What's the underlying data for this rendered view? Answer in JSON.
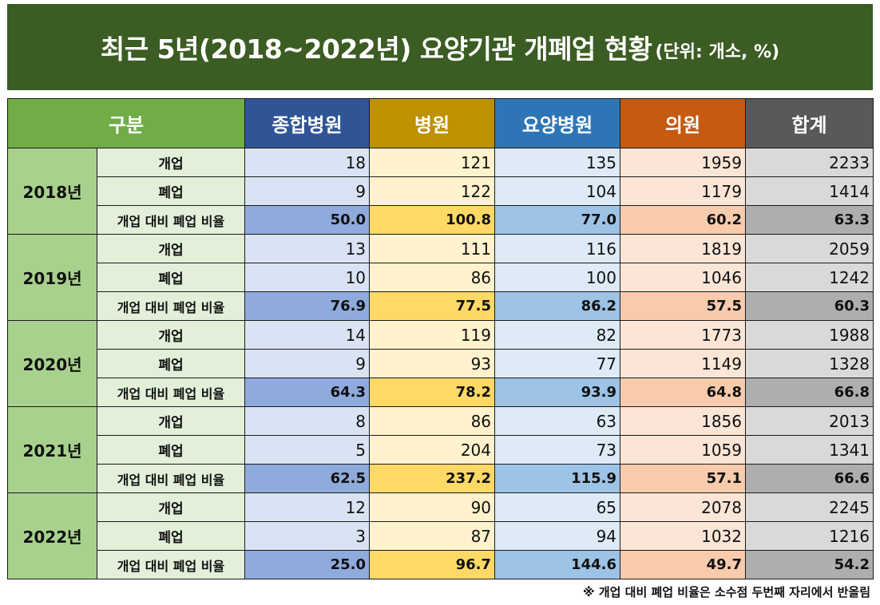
{
  "title": {
    "main": "최근 5년(2018~2022년) 요양기관 개폐업 현황",
    "unit": "(단위: 개소, %)"
  },
  "columns": {
    "category": "구분",
    "items": [
      "종합병원",
      "병원",
      "요양병원",
      "의원",
      "합계"
    ]
  },
  "row_labels": {
    "open": "개업",
    "close": "폐업",
    "ratio": "개업 대비 폐업 비율"
  },
  "years": [
    {
      "year": "2018년",
      "open": [
        "18",
        "121",
        "135",
        "1959",
        "2233"
      ],
      "close": [
        "9",
        "122",
        "104",
        "1179",
        "1414"
      ],
      "ratio": [
        "50.0",
        "100.8",
        "77.0",
        "60.2",
        "63.3"
      ]
    },
    {
      "year": "2019년",
      "open": [
        "13",
        "111",
        "116",
        "1819",
        "2059"
      ],
      "close": [
        "10",
        "86",
        "100",
        "1046",
        "1242"
      ],
      "ratio": [
        "76.9",
        "77.5",
        "86.2",
        "57.5",
        "60.3"
      ]
    },
    {
      "year": "2020년",
      "open": [
        "14",
        "119",
        "82",
        "1773",
        "1988"
      ],
      "close": [
        "9",
        "93",
        "77",
        "1149",
        "1328"
      ],
      "ratio": [
        "64.3",
        "78.2",
        "93.9",
        "64.8",
        "66.8"
      ]
    },
    {
      "year": "2021년",
      "open": [
        "8",
        "86",
        "63",
        "1856",
        "2013"
      ],
      "close": [
        "5",
        "204",
        "73",
        "1059",
        "1341"
      ],
      "ratio": [
        "62.5",
        "237.2",
        "115.9",
        "57.1",
        "66.6"
      ]
    },
    {
      "year": "2022년",
      "open": [
        "12",
        "90",
        "65",
        "2078",
        "2245"
      ],
      "close": [
        "3",
        "87",
        "94",
        "1032",
        "1216"
      ],
      "ratio": [
        "25.0",
        "96.7",
        "144.6",
        "49.7",
        "54.2"
      ]
    }
  ],
  "footnote": "※ 개업 대비 폐업 비율은 소수점 두번째 자리에서 반올림"
}
